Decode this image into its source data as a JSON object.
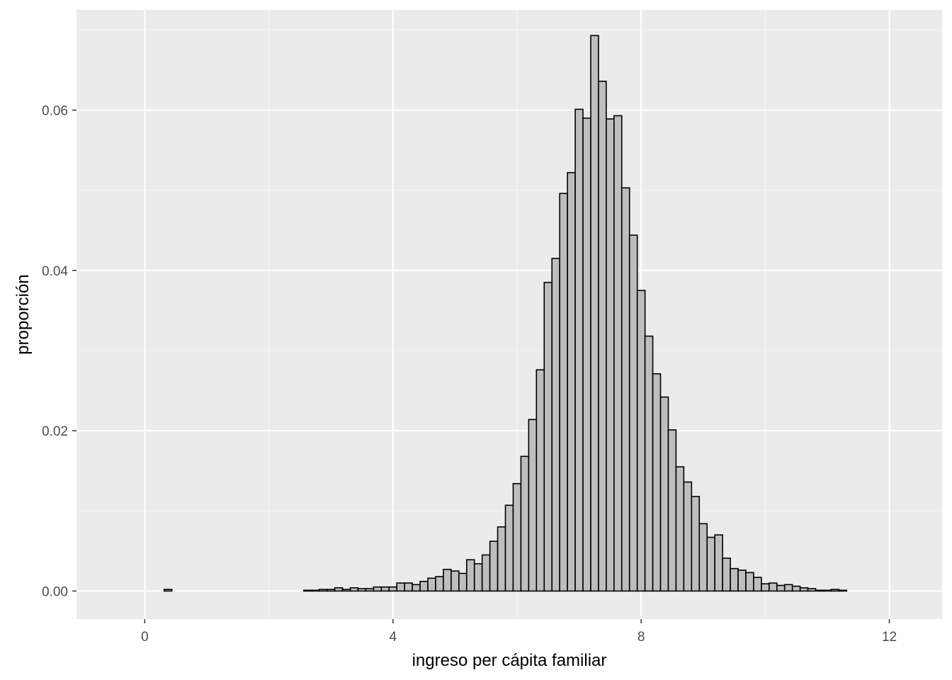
{
  "chart_data": {
    "type": "bar",
    "subtype": "histogram",
    "title": "",
    "xlabel": "ingreso per cápita familiar",
    "ylabel": "proporción",
    "xlim": [
      -1.1,
      12.85
    ],
    "ylim": [
      -0.0035,
      0.0725
    ],
    "x_ticks": [
      0,
      4,
      8,
      12
    ],
    "x_tick_labels": [
      "0",
      "4",
      "8",
      "12"
    ],
    "y_ticks": [
      0.0,
      0.02,
      0.04,
      0.06
    ],
    "y_tick_labels": [
      "0.00",
      "0.02",
      "0.04",
      "0.06"
    ],
    "grid": true,
    "legend": "none",
    "bin_width": 0.125,
    "bin_start": -0.5625,
    "values": [
      0,
      0,
      0,
      0,
      0,
      0,
      0,
      0.0002,
      0,
      0,
      0,
      0,
      0,
      0,
      0,
      0,
      0,
      0,
      0,
      0,
      0,
      0,
      0,
      0,
      0,
      0.0001,
      0.0001,
      0.0002,
      0.0002,
      0.0004,
      0.0002,
      0.0004,
      0.0003,
      0.0003,
      0.0005,
      0.0005,
      0.0005,
      0.001,
      0.001,
      0.0008,
      0.0012,
      0.0016,
      0.0018,
      0.0027,
      0.0025,
      0.0022,
      0.0039,
      0.0034,
      0.0045,
      0.0062,
      0.008,
      0.0107,
      0.0134,
      0.0168,
      0.0214,
      0.0276,
      0.0385,
      0.0415,
      0.0496,
      0.0522,
      0.0601,
      0.059,
      0.0693,
      0.0636,
      0.0589,
      0.0593,
      0.0503,
      0.0444,
      0.0375,
      0.0318,
      0.0271,
      0.0242,
      0.0201,
      0.0155,
      0.0136,
      0.0118,
      0.0084,
      0.0067,
      0.007,
      0.0041,
      0.0028,
      0.0026,
      0.0023,
      0.0017,
      0.0009,
      0.001,
      0.0007,
      0.0008,
      0.0006,
      0.0004,
      0.0003,
      0.0001,
      0.0001,
      0.0002,
      0.0001,
      0,
      0,
      0,
      0,
      0,
      0,
      0
    ],
    "colors": {
      "panel_background": "#ebebeb",
      "grid_major": "#ffffff",
      "grid_minor": "#f5f5f5",
      "bar_fill": "#bebebe",
      "bar_stroke": "#000000",
      "tick_label": "#4d4d4d",
      "tick_mark": "#333333"
    }
  }
}
